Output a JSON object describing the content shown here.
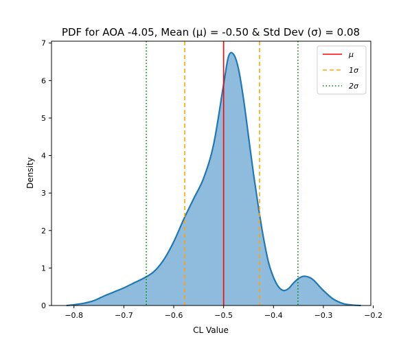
{
  "chart_data": {
    "type": "area",
    "title": "PDF for AOA -4.05, Mean (μ) = -0.50 & Std Dev (σ) = 0.08",
    "xlabel": "CL Value",
    "ylabel": "Density",
    "xlim": [
      -0.845,
      -0.205
    ],
    "ylim": [
      0,
      7.05
    ],
    "xticks": [
      -0.8,
      -0.7,
      -0.6,
      -0.5,
      -0.4,
      -0.3,
      -0.2
    ],
    "xtick_labels": [
      "−0.8",
      "−0.7",
      "−0.6",
      "−0.5",
      "−0.4",
      "−0.3",
      "−0.2"
    ],
    "yticks": [
      0,
      1,
      2,
      3,
      4,
      5,
      6,
      7
    ],
    "ytick_labels": [
      "0",
      "1",
      "2",
      "3",
      "4",
      "5",
      "6",
      "7"
    ],
    "grid": false,
    "legend_position": "top-right",
    "series": [
      {
        "type": "kde",
        "color": "#1f77b4",
        "fill_color": "#8fbcdc",
        "x": [
          -0.815,
          -0.8,
          -0.78,
          -0.76,
          -0.74,
          -0.72,
          -0.7,
          -0.68,
          -0.66,
          -0.64,
          -0.62,
          -0.6,
          -0.58,
          -0.56,
          -0.54,
          -0.52,
          -0.5,
          -0.49,
          -0.48,
          -0.47,
          -0.46,
          -0.45,
          -0.44,
          -0.43,
          -0.42,
          -0.41,
          -0.4,
          -0.39,
          -0.38,
          -0.37,
          -0.36,
          -0.35,
          -0.34,
          -0.33,
          -0.32,
          -0.3,
          -0.28,
          -0.26,
          -0.24,
          -0.225
        ],
        "y": [
          0.0,
          0.02,
          0.06,
          0.13,
          0.25,
          0.36,
          0.47,
          0.6,
          0.73,
          0.9,
          1.22,
          1.7,
          2.3,
          2.85,
          3.4,
          4.3,
          5.9,
          6.65,
          6.7,
          6.3,
          5.5,
          4.5,
          3.5,
          2.6,
          1.8,
          1.15,
          0.75,
          0.5,
          0.4,
          0.45,
          0.6,
          0.72,
          0.78,
          0.76,
          0.68,
          0.4,
          0.17,
          0.05,
          0.01,
          0.0
        ]
      }
    ],
    "vlines": [
      {
        "x": -0.5,
        "color": "#ff0000",
        "style": "solid"
      },
      {
        "x": -0.578,
        "color": "#ffa500",
        "style": "dashed"
      },
      {
        "x": -0.428,
        "color": "#ffa500",
        "style": "dashed"
      },
      {
        "x": -0.655,
        "color": "#008000",
        "style": "dotted"
      },
      {
        "x": -0.351,
        "color": "#008000",
        "style": "dotted"
      }
    ],
    "legend": [
      {
        "label": "μ",
        "color": "#ff0000",
        "style": "solid"
      },
      {
        "label": "1σ",
        "color": "#ffa500",
        "style": "dashed"
      },
      {
        "label": "2σ",
        "color": "#008000",
        "style": "dotted"
      }
    ]
  }
}
